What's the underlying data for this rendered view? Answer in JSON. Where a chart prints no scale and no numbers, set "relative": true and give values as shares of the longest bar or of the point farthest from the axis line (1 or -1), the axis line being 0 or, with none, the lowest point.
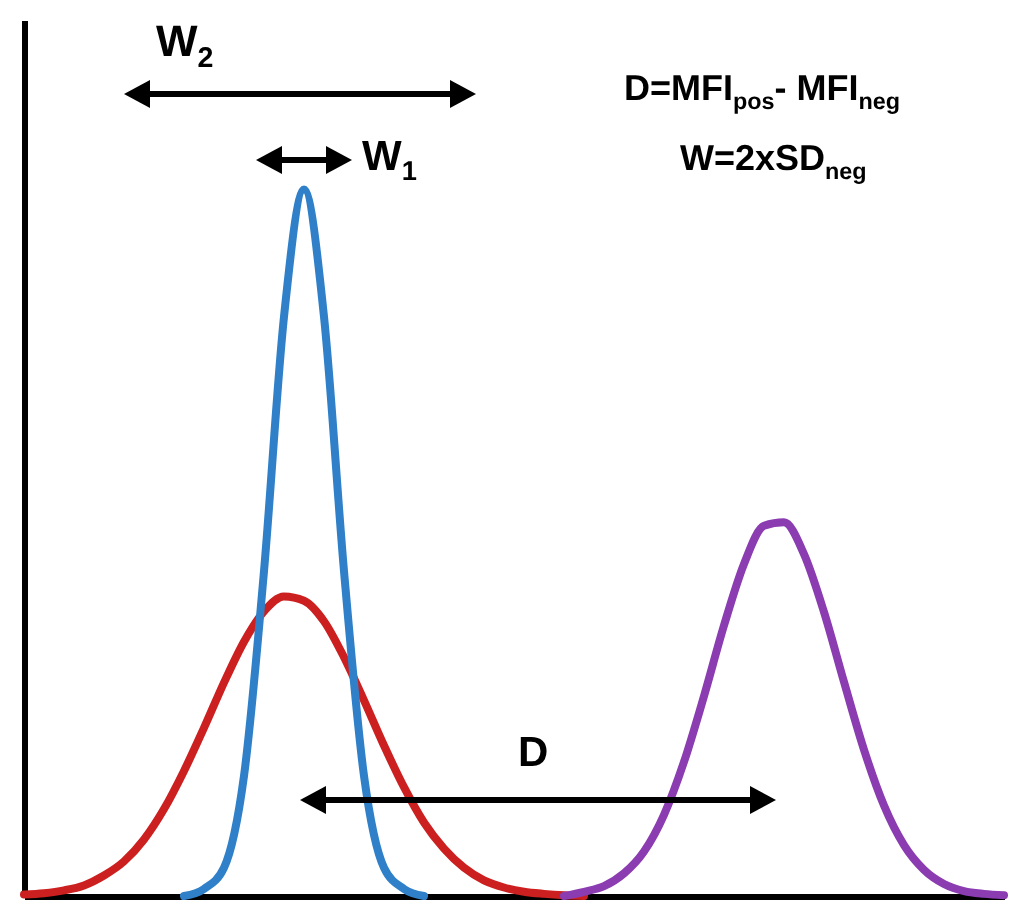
{
  "chart_data": {
    "type": "line",
    "relative": true,
    "line_style": "solid",
    "categories": [
      null,
      null,
      null,
      null,
      null,
      null,
      null,
      null,
      null,
      null,
      null,
      null,
      null,
      null,
      null,
      null,
      null,
      null,
      null,
      null,
      null,
      null,
      null,
      null,
      null,
      null,
      null,
      null,
      null,
      null,
      null,
      null,
      null,
      null,
      null,
      null,
      null,
      null,
      null,
      null,
      null,
      null,
      null,
      null,
      null,
      null,
      null,
      null,
      null,
      null
    ],
    "series": [
      {
        "color": "#cc2020",
        "values": [
          0.002,
          0.004,
          0.008,
          0.015,
          0.029,
          0.049,
          0.08,
          0.123,
          0.177,
          0.238,
          0.302,
          0.36,
          0.403,
          0.424,
          0.418,
          0.389,
          0.338,
          0.277,
          0.213,
          0.154,
          0.104,
          0.067,
          0.04,
          0.022,
          0.012,
          0.006,
          0.003,
          0.001,
          0,
          null,
          null,
          null,
          null,
          null,
          null,
          null,
          null,
          null,
          null,
          null,
          null,
          null,
          null,
          null,
          null,
          null,
          null,
          null,
          null,
          null
        ]
      },
      {
        "color": "#2f80c8",
        "values": [
          null,
          null,
          null,
          null,
          null,
          null,
          null,
          null,
          0,
          0.01,
          0.04,
          0.17,
          0.46,
          0.82,
          1,
          0.82,
          0.46,
          0.17,
          0.04,
          0.01,
          0,
          null,
          null,
          null,
          null,
          null,
          null,
          null,
          null,
          null,
          null,
          null,
          null,
          null,
          null,
          null,
          null,
          null,
          null,
          null,
          null,
          null,
          null,
          null,
          null,
          null,
          null,
          null,
          null,
          null
        ]
      },
      {
        "color": "#8a3cb0",
        "values": [
          null,
          null,
          null,
          null,
          null,
          null,
          null,
          null,
          null,
          null,
          null,
          null,
          null,
          null,
          null,
          null,
          null,
          null,
          null,
          null,
          null,
          null,
          null,
          null,
          null,
          null,
          null,
          0,
          0.006,
          0.014,
          0.032,
          0.063,
          0.115,
          0.19,
          0.283,
          0.383,
          0.47,
          0.524,
          0.529,
          0.484,
          0.402,
          0.303,
          0.207,
          0.128,
          0.072,
          0.037,
          0.017,
          0.007,
          0.003,
          0.001
        ]
      }
    ],
    "annotations": [
      "W$_{2}$",
      "W$_{1}$",
      "D",
      "D=MFI$_{pos}$- MFI$_{neg}$",
      "W=2xSD$_{neg}$"
    ]
  }
}
